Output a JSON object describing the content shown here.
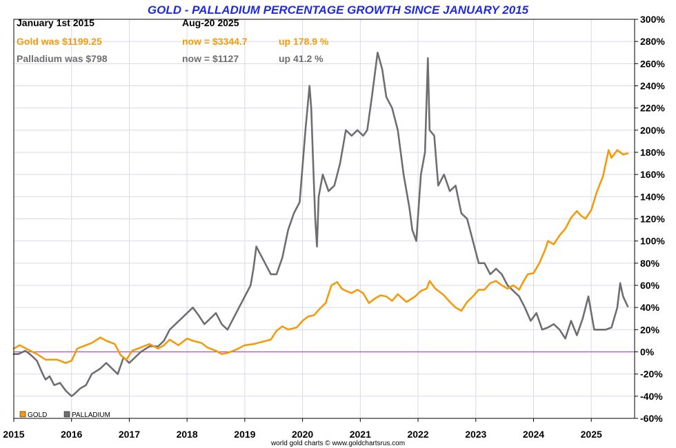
{
  "header": {
    "title": "GOLD - PALLADIUM PERCENTAGE GROWTH SINCE JANUARY 2015",
    "start_label": "January 1st 2015",
    "end_label": "Aug-20  2025",
    "gold_was": "Gold was $1199.25",
    "gold_now": "now = $3344.7",
    "gold_up": "up 178.9 %",
    "palladium_was": "Palladium was $798",
    "palladium_now": "now = $1127",
    "palladium_up": "up 41.2 %"
  },
  "credit": "world gold charts © www.goldchartsrus.com",
  "colors": {
    "gold": "#f59a0a",
    "palladium": "#6e6e6e",
    "title": "#1f2ad9",
    "zero_line": "#b04ab8",
    "grid": "#d8d8e8"
  },
  "chart_data": {
    "type": "line",
    "title": "GOLD - PALLADIUM PERCENTAGE GROWTH SINCE JANUARY 2015",
    "xlabel": "",
    "ylabel": "",
    "x_ticks": [
      "2015",
      "2016",
      "2017",
      "2018",
      "2019",
      "2020",
      "2021",
      "2022",
      "2023",
      "2024",
      "2025"
    ],
    "y_ticks": [
      "300%",
      "280%",
      "260%",
      "240%",
      "220%",
      "200%",
      "180%",
      "160%",
      "140%",
      "120%",
      "100%",
      "80%",
      "60%",
      "40%",
      "20%",
      "0%",
      "-20%",
      "-40%",
      "-60%"
    ],
    "xlim": [
      2015.0,
      2025.75
    ],
    "ylim": [
      -60,
      300
    ],
    "grid": true,
    "legend_position": "bottom-left",
    "zero_line": true,
    "series": [
      {
        "name": "GOLD",
        "x": [
          2015.0,
          2015.1,
          2015.25,
          2015.4,
          2015.55,
          2015.75,
          2015.9,
          2016.0,
          2016.1,
          2016.2,
          2016.35,
          2016.5,
          2016.6,
          2016.75,
          2016.85,
          2016.95,
          2017.05,
          2017.2,
          2017.35,
          2017.5,
          2017.6,
          2017.7,
          2017.85,
          2018.0,
          2018.1,
          2018.25,
          2018.35,
          2018.5,
          2018.6,
          2018.7,
          2018.85,
          2019.0,
          2019.15,
          2019.3,
          2019.45,
          2019.55,
          2019.65,
          2019.75,
          2019.9,
          2020.0,
          2020.1,
          2020.2,
          2020.3,
          2020.4,
          2020.5,
          2020.6,
          2020.68,
          2020.75,
          2020.85,
          2020.95,
          2021.05,
          2021.15,
          2021.25,
          2021.35,
          2021.45,
          2021.55,
          2021.65,
          2021.8,
          2021.95,
          2022.05,
          2022.15,
          2022.2,
          2022.3,
          2022.45,
          2022.55,
          2022.65,
          2022.75,
          2022.85,
          2022.95,
          2023.05,
          2023.15,
          2023.25,
          2023.35,
          2023.45,
          2023.55,
          2023.65,
          2023.75,
          2023.82,
          2023.9,
          2024.0,
          2024.1,
          2024.2,
          2024.25,
          2024.35,
          2024.45,
          2024.55,
          2024.65,
          2024.75,
          2024.82,
          2024.9,
          2025.0,
          2025.1,
          2025.2,
          2025.3,
          2025.35,
          2025.45,
          2025.55,
          2025.63
        ],
        "values": [
          3,
          6,
          2,
          -2,
          -7,
          -7,
          -10,
          -8,
          3,
          5,
          8,
          13,
          10,
          7,
          -3,
          -7,
          1,
          4,
          7,
          3,
          6,
          11,
          6,
          12,
          10,
          8,
          4,
          1,
          -2,
          -1,
          2,
          6,
          7,
          9,
          11,
          19,
          23,
          20,
          22,
          28,
          32,
          33,
          39,
          44,
          60,
          63,
          57,
          55,
          53,
          56,
          53,
          44,
          48,
          51,
          50,
          46,
          52,
          45,
          50,
          55,
          57,
          64,
          57,
          51,
          45,
          40,
          37,
          45,
          50,
          56,
          56,
          62,
          64,
          60,
          57,
          60,
          56,
          63,
          70,
          71,
          80,
          92,
          100,
          97,
          105,
          111,
          121,
          127,
          123,
          120,
          128,
          145,
          158,
          182,
          175,
          182,
          178,
          179
        ]
      },
      {
        "name": "PALLADIUM",
        "x": [
          2015.0,
          2015.08,
          2015.2,
          2015.3,
          2015.4,
          2015.5,
          2015.55,
          2015.62,
          2015.7,
          2015.8,
          2015.9,
          2016.0,
          2016.05,
          2016.15,
          2016.25,
          2016.35,
          2016.5,
          2016.6,
          2016.7,
          2016.8,
          2016.9,
          2017.0,
          2017.1,
          2017.2,
          2017.35,
          2017.5,
          2017.6,
          2017.7,
          2017.8,
          2017.9,
          2018.0,
          2018.1,
          2018.2,
          2018.3,
          2018.4,
          2018.5,
          2018.6,
          2018.7,
          2018.8,
          2018.9,
          2019.0,
          2019.1,
          2019.15,
          2019.2,
          2019.25,
          2019.35,
          2019.45,
          2019.55,
          2019.65,
          2019.75,
          2019.85,
          2019.95,
          2020.05,
          2020.12,
          2020.15,
          2020.18,
          2020.22,
          2020.25,
          2020.28,
          2020.35,
          2020.45,
          2020.55,
          2020.65,
          2020.75,
          2020.85,
          2020.95,
          2021.05,
          2021.12,
          2021.2,
          2021.3,
          2021.38,
          2021.45,
          2021.55,
          2021.65,
          2021.75,
          2021.85,
          2021.9,
          2021.97,
          2022.05,
          2022.12,
          2022.17,
          2022.2,
          2022.28,
          2022.35,
          2022.45,
          2022.55,
          2022.65,
          2022.75,
          2022.85,
          2022.95,
          2023.05,
          2023.15,
          2023.25,
          2023.35,
          2023.45,
          2023.55,
          2023.65,
          2023.75,
          2023.85,
          2023.95,
          2024.05,
          2024.15,
          2024.25,
          2024.35,
          2024.45,
          2024.55,
          2024.65,
          2024.75,
          2024.85,
          2024.95,
          2025.05,
          2025.15,
          2025.25,
          2025.35,
          2025.45,
          2025.5,
          2025.55,
          2025.63
        ],
        "values": [
          -2,
          -2,
          1,
          -3,
          -8,
          -20,
          -25,
          -22,
          -30,
          -28,
          -35,
          -40,
          -38,
          -33,
          -30,
          -20,
          -15,
          -10,
          -15,
          -20,
          -5,
          -10,
          -5,
          0,
          5,
          5,
          10,
          20,
          25,
          30,
          35,
          40,
          33,
          25,
          30,
          35,
          25,
          20,
          30,
          40,
          50,
          60,
          75,
          95,
          90,
          80,
          70,
          70,
          85,
          110,
          125,
          135,
          200,
          240,
          220,
          175,
          120,
          95,
          140,
          160,
          145,
          150,
          170,
          200,
          195,
          200,
          195,
          200,
          230,
          270,
          255,
          230,
          220,
          200,
          160,
          130,
          110,
          100,
          160,
          180,
          265,
          200,
          195,
          150,
          160,
          145,
          150,
          125,
          120,
          100,
          80,
          80,
          70,
          75,
          70,
          60,
          55,
          50,
          40,
          28,
          35,
          20,
          22,
          25,
          20,
          12,
          28,
          15,
          30,
          50,
          20,
          20,
          20,
          22,
          40,
          62,
          50,
          41
        ]
      }
    ]
  }
}
